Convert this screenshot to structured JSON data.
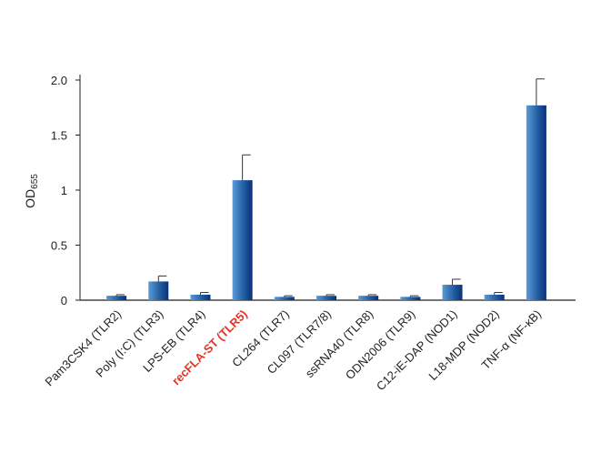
{
  "chart_data": {
    "type": "bar",
    "ylabel": {
      "text": "OD",
      "subscript": "655"
    },
    "categories": [
      "Pam3CSK4 (TLR2)",
      "Poly (I:C) (TLR3)",
      "LPS-EB (TLR4)",
      "recFLA-ST (TLR5)",
      "CL264 (TLR7)",
      "CL097 (TLR7/8)",
      "ssRNA40 (TLR8)",
      "ODN2006 (TLR9)",
      "C12-iE-DAP (NOD1)",
      "L18-MDP (NOD2)",
      "TNF-α (NF-κB)"
    ],
    "values": [
      0.04,
      0.17,
      0.05,
      1.09,
      0.03,
      0.04,
      0.04,
      0.03,
      0.14,
      0.05,
      1.77
    ],
    "errors": [
      0.01,
      0.05,
      0.02,
      0.23,
      0.01,
      0.01,
      0.01,
      0.01,
      0.05,
      0.02,
      0.24
    ],
    "color": "#1f5aa0",
    "highlight": {
      "index": 3,
      "color": "#e63323"
    },
    "ylim": [
      0,
      2
    ],
    "yticks": [
      0,
      0.5,
      1,
      1.5,
      {
        "value": 2,
        "label": "2.0"
      }
    ]
  }
}
